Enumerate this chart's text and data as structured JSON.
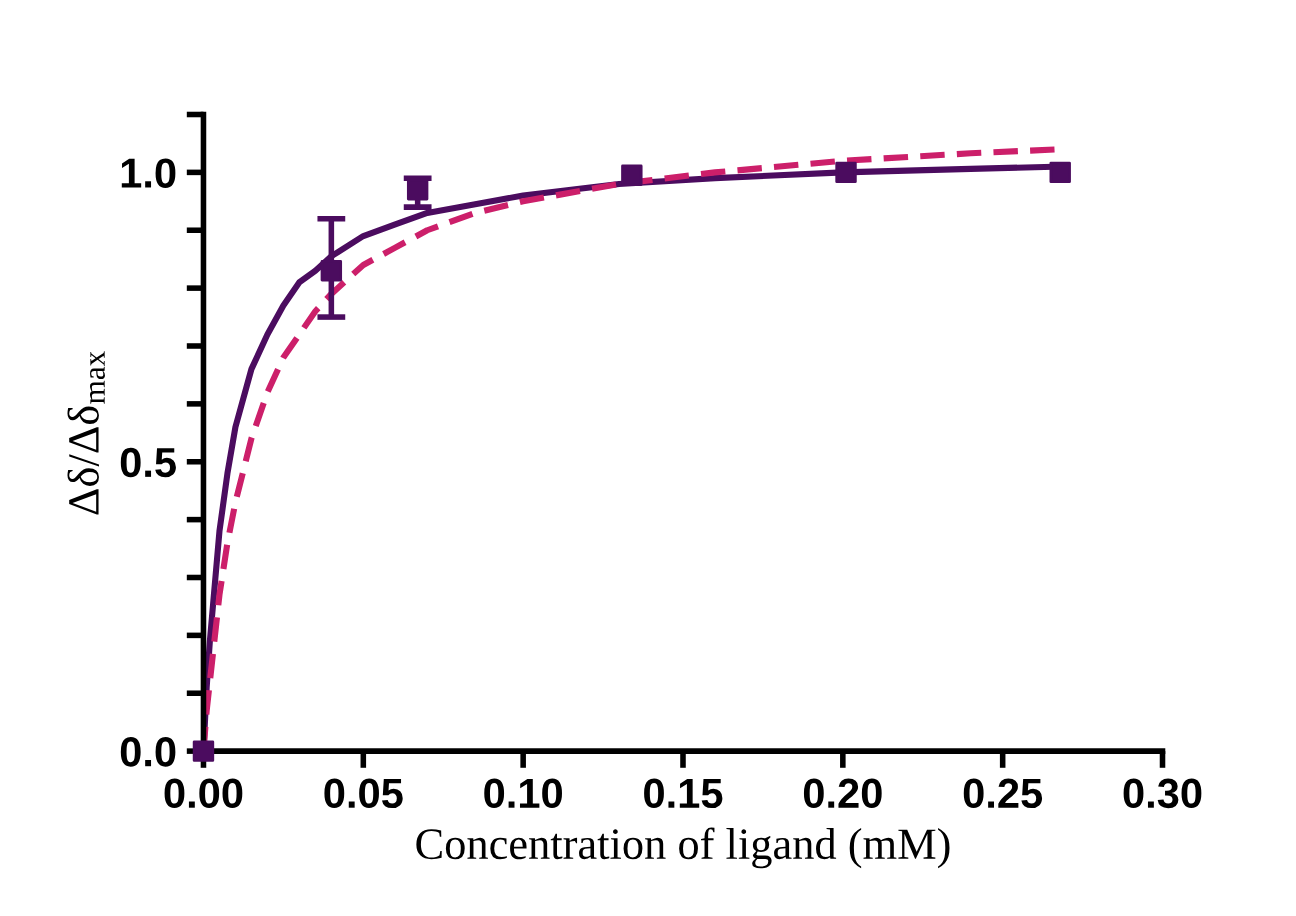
{
  "chart_data": {
    "type": "line",
    "xlabel": "Concentration of ligand (mM)",
    "ylabel": "Δδ/Δδ$_{max}$",
    "xlim": [
      0,
      0.3
    ],
    "xticks": [
      {
        "value": 0,
        "label": "0.00"
      },
      {
        "value": 0.05,
        "label": "0.05"
      },
      {
        "value": 0.1,
        "label": "0.10"
      },
      {
        "value": 0.15,
        "label": "0.15"
      },
      {
        "value": 0.2,
        "label": "0.20"
      },
      {
        "value": 0.25,
        "label": "0.25"
      },
      {
        "value": 0.3,
        "label": "0.30"
      }
    ],
    "ylim": [
      0,
      1.1
    ],
    "yticks": [
      {
        "value": 0,
        "label": "0.0"
      },
      {
        "value": 0.1,
        "label": null
      },
      {
        "value": 0.2,
        "label": null
      },
      {
        "value": 0.3,
        "label": null
      },
      {
        "value": 0.4,
        "label": null
      },
      {
        "value": 0.5,
        "label": "0.5"
      },
      {
        "value": 0.6,
        "label": null
      },
      {
        "value": 0.7,
        "label": null
      },
      {
        "value": 0.8,
        "label": null
      },
      {
        "value": 0.9,
        "label": null
      },
      {
        "value": 1.0,
        "label": "1.0"
      },
      {
        "value": 1.1,
        "label": null
      }
    ],
    "grid": false,
    "legend": false,
    "series": [
      {
        "color": "#4b0c5f",
        "line_style": "solid",
        "marker": "none",
        "x": [
          0,
          0.001,
          0.002,
          0.005,
          0.0075,
          0.01,
          0.015,
          0.02,
          0.025,
          0.03,
          0.035,
          0.04,
          0.05,
          0.06,
          0.07,
          0.085,
          0.1,
          0.13,
          0.16,
          0.2,
          0.24,
          0.268
        ],
        "values": [
          0,
          0.11,
          0.19,
          0.38,
          0.48,
          0.56,
          0.66,
          0.72,
          0.77,
          0.81,
          0.83,
          0.855,
          0.89,
          0.91,
          0.93,
          0.945,
          0.96,
          0.98,
          0.99,
          1.0,
          1.006,
          1.01
        ]
      },
      {
        "color": "#cc1f6a",
        "line_style": "dashed",
        "marker": "none",
        "x": [
          0,
          0.001,
          0.002,
          0.005,
          0.0075,
          0.01,
          0.015,
          0.02,
          0.025,
          0.03,
          0.035,
          0.04,
          0.05,
          0.06,
          0.07,
          0.085,
          0.1,
          0.13,
          0.16,
          0.2,
          0.24,
          0.268
        ],
        "values": [
          0,
          0.07,
          0.12,
          0.27,
          0.36,
          0.43,
          0.54,
          0.62,
          0.68,
          0.72,
          0.76,
          0.79,
          0.84,
          0.87,
          0.9,
          0.93,
          0.95,
          0.98,
          1.0,
          1.02,
          1.033,
          1.04
        ]
      },
      {
        "type": "scatter",
        "color": "#4b0c5f",
        "marker": "square",
        "x": [
          0,
          0.04,
          0.067,
          0.134,
          0.201,
          0.268
        ],
        "values": [
          0,
          0.83,
          0.97,
          0.995,
          1.0,
          1.0
        ],
        "errors": [
          null,
          [
            0.75,
            0.92
          ],
          [
            0.94,
            0.99
          ],
          null,
          null,
          null
        ]
      }
    ]
  }
}
